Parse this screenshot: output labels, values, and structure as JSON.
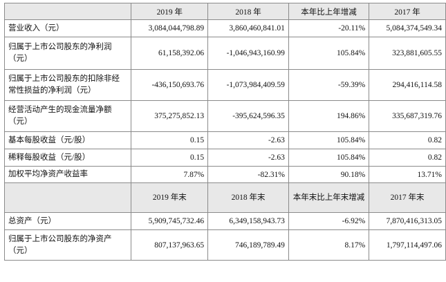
{
  "header1": [
    "",
    "2019 年",
    "2018 年",
    "本年比上年增减",
    "2017 年"
  ],
  "rows1": [
    {
      "label": "营业收入（元）",
      "v2019": "3,084,044,798.89",
      "v2018": "3,860,460,841.01",
      "change": "-20.11%",
      "v2017": "5,084,374,549.34"
    },
    {
      "label": "归属于上市公司股东的净利润（元）",
      "v2019": "61,158,392.06",
      "v2018": "-1,046,943,160.99",
      "change": "105.84%",
      "v2017": "323,881,605.55"
    },
    {
      "label": "归属于上市公司股东的扣除非经常性损益的净利润（元）",
      "v2019": "-436,150,693.76",
      "v2018": "-1,073,984,409.59",
      "change": "-59.39%",
      "v2017": "294,416,114.58"
    },
    {
      "label": "经营活动产生的现金流量净额（元）",
      "v2019": "375,275,852.13",
      "v2018": "-395,624,596.35",
      "change": "194.86%",
      "v2017": "335,687,319.76"
    },
    {
      "label": "基本每股收益（元/股）",
      "v2019": "0.15",
      "v2018": "-2.63",
      "change": "105.84%",
      "v2017": "0.82"
    },
    {
      "label": "稀释每股收益（元/股）",
      "v2019": "0.15",
      "v2018": "-2.63",
      "change": "105.84%",
      "v2017": "0.82"
    },
    {
      "label": "加权平均净资产收益率",
      "v2019": "7.87%",
      "v2018": "-82.31%",
      "change": "90.18%",
      "v2017": "13.71%"
    }
  ],
  "header2": [
    "",
    "2019 年末",
    "2018 年末",
    "本年末比上年末增减",
    "2017 年末"
  ],
  "rows2": [
    {
      "label": "总资产（元）",
      "v2019": "5,909,745,732.46",
      "v2018": "6,349,158,943.73",
      "change": "-6.92%",
      "v2017": "7,870,416,313.05"
    },
    {
      "label": "归属于上市公司股东的净资产（元）",
      "v2019": "807,137,963.65",
      "v2018": "746,189,789.49",
      "change": "8.17%",
      "v2017": "1,797,114,497.06"
    }
  ]
}
